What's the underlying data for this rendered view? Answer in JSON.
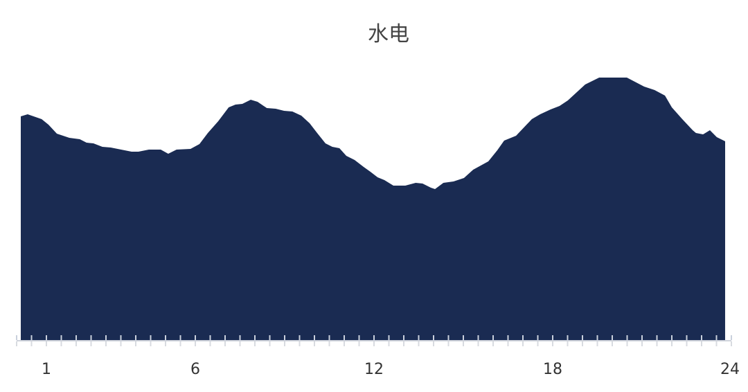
{
  "chart_data": {
    "type": "area",
    "title": "水电",
    "xlabel": "",
    "ylabel": "",
    "xlim": [
      0,
      24
    ],
    "ylim": [
      0,
      380
    ],
    "x_tick_labels": [
      "1",
      "6",
      "12",
      "18",
      "24"
    ],
    "x_tick_values": [
      1,
      6,
      12,
      18,
      24
    ],
    "grid": false,
    "color": "#1a2b52",
    "x": [
      0.14,
      0.37,
      0.84,
      1.07,
      1.35,
      1.77,
      2.12,
      2.35,
      2.58,
      2.88,
      3.16,
      3.51,
      3.86,
      4.09,
      4.44,
      4.84,
      5.09,
      5.37,
      5.84,
      6.14,
      6.42,
      6.77,
      7.12,
      7.35,
      7.58,
      7.86,
      8.09,
      8.4,
      8.7,
      8.98,
      9.26,
      9.56,
      9.84,
      10.09,
      10.37,
      10.6,
      10.84,
      11.07,
      11.35,
      11.65,
      11.88,
      12.12,
      12.35,
      12.65,
      13.05,
      13.4,
      13.63,
      13.91,
      14.05,
      14.33,
      14.67,
      15.02,
      15.33,
      15.84,
      16.14,
      16.37,
      16.77,
      17.3,
      17.58,
      17.93,
      18.23,
      18.51,
      19.09,
      19.56,
      20.02,
      20.49,
      21.07,
      21.42,
      21.77,
      22.0,
      22.35,
      22.7,
      22.81,
      23.05,
      23.28,
      23.51,
      23.79
    ],
    "values": [
      324,
      327,
      320,
      312,
      299,
      293,
      291,
      286,
      285,
      280,
      279,
      276,
      273,
      273,
      276,
      276,
      270,
      276,
      277,
      284,
      300,
      317,
      337,
      341,
      342,
      348,
      345,
      336,
      335,
      332,
      331,
      325,
      314,
      300,
      285,
      280,
      278,
      267,
      261,
      251,
      244,
      236,
      232,
      224,
      224,
      228,
      227,
      221,
      219,
      228,
      230,
      235,
      247,
      259,
      275,
      289,
      296,
      320,
      327,
      334,
      339,
      347,
      370,
      380,
      380,
      380,
      367,
      362,
      354,
      337,
      320,
      304,
      300,
      298,
      304,
      294,
      288
    ]
  }
}
